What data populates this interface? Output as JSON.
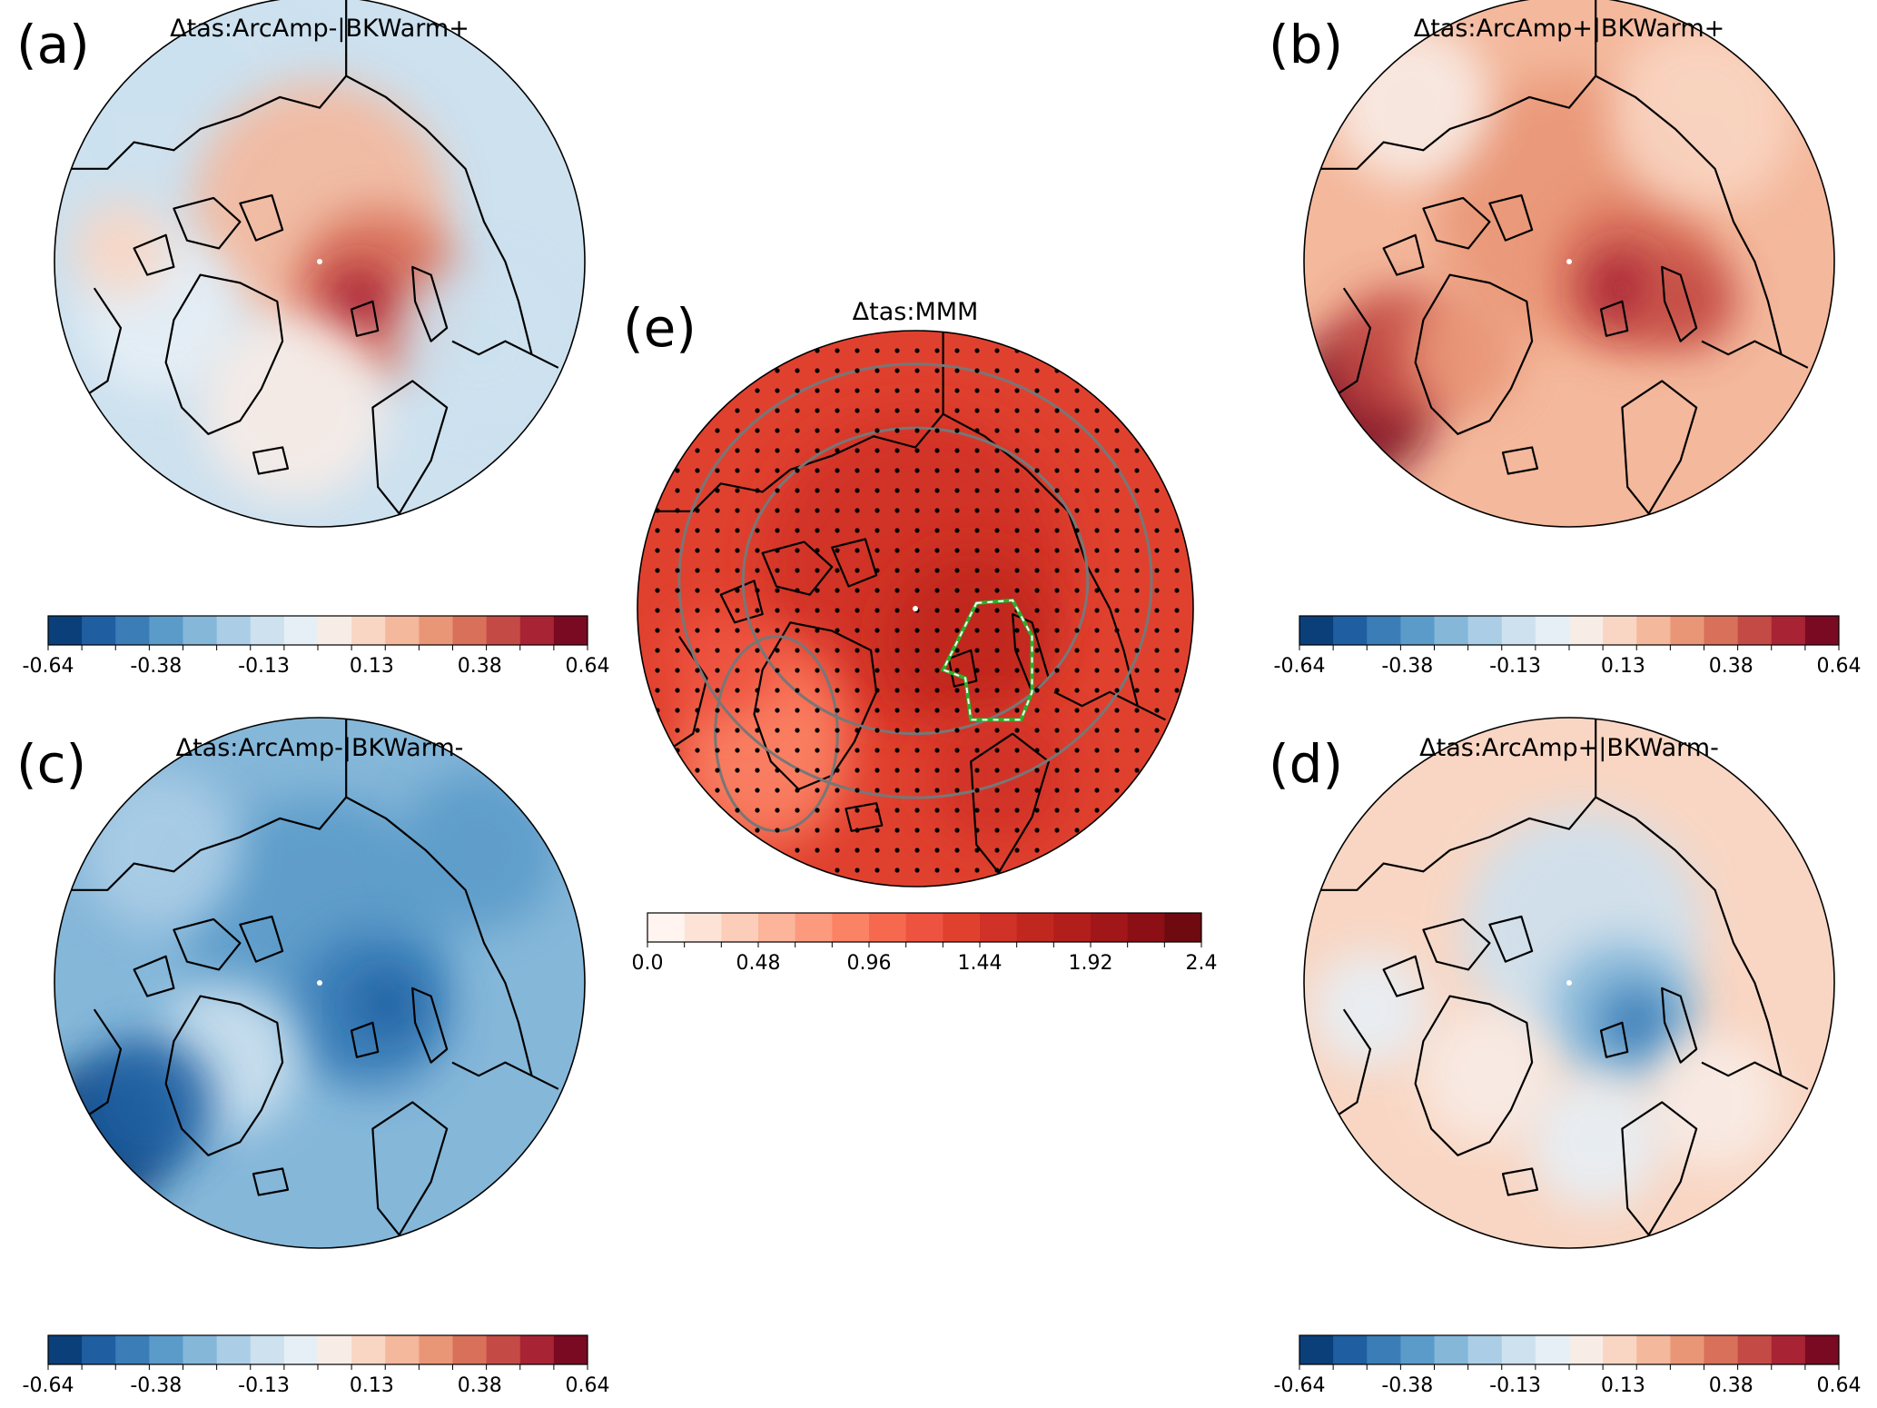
{
  "panels": [
    {
      "id": "a",
      "label": "(a)",
      "title": "Δtas:ArcAmp-|BKWarm+",
      "colormap": "diverging",
      "ticks": [
        "-0.64",
        "-0.38",
        "-0.13",
        "0.13",
        "0.38",
        "0.64"
      ],
      "field_note": "weak warming over central Arctic / Barents-Kara, slight cooling elsewhere"
    },
    {
      "id": "b",
      "label": "(b)",
      "title": "Δtas:ArcAmp+|BKWarm+",
      "colormap": "diverging",
      "ticks": [
        "-0.64",
        "-0.38",
        "-0.13",
        "0.13",
        "0.38",
        "0.64"
      ]
    },
    {
      "id": "c",
      "label": "(c)",
      "title": "Δtas:ArcAmp-|BKWarm-",
      "colormap": "diverging",
      "ticks": [
        "-0.64",
        "-0.38",
        "-0.13",
        "0.13",
        "0.38",
        "0.64"
      ]
    },
    {
      "id": "d",
      "label": "(d)",
      "title": "Δtas:ArcAmp+|BKWarm-",
      "colormap": "diverging",
      "ticks": [
        "-0.64",
        "-0.38",
        "-0.13",
        "0.13",
        "0.38",
        "0.64"
      ]
    },
    {
      "id": "e",
      "label": "(e)",
      "title": "Δtas:MMM",
      "colormap": "sequential-reds",
      "ticks": [
        "0.0",
        "0.48",
        "0.96",
        "1.44",
        "1.92",
        "2.4"
      ]
    }
  ],
  "colors": {
    "diverging": [
      "#0b3f7a",
      "#1f5fa1",
      "#3a7db7",
      "#5b9bc9",
      "#85b7d9",
      "#abcde6",
      "#cde1ef",
      "#e6eff6",
      "#f8ece6",
      "#f9d6c3",
      "#f4b89c",
      "#e99677",
      "#d8705a",
      "#c44b45",
      "#a82434",
      "#7a0a22"
    ],
    "reds": [
      "#fff4ef",
      "#fde3d6",
      "#fccdb9",
      "#fcb49b",
      "#fc9a7d",
      "#fb8265",
      "#f6694f",
      "#ee5340",
      "#e0412f",
      "#d03227",
      "#c0281f",
      "#b21e1b",
      "#a11619",
      "#8b0f15",
      "#6f0a10"
    ],
    "coast": "#000000",
    "contour": "#777777",
    "region_outline": "#2bb02b"
  }
}
